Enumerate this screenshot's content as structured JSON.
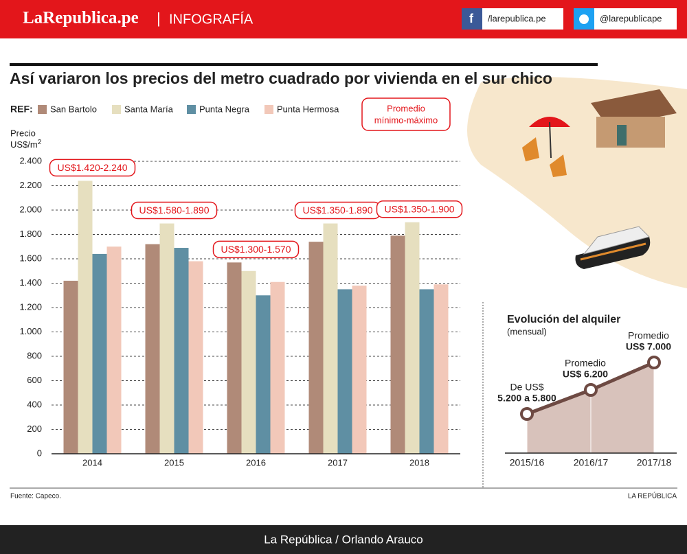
{
  "header": {
    "brand": "LaRepublica.pe",
    "section": "INFOGRAFÍA",
    "facebook": "/larepublica.pe",
    "twitter": "@larepublicape"
  },
  "chart_data": [
    {
      "type": "bar",
      "title": "Así variaron los precios del metro cuadrado por vivienda en el sur chico",
      "legend_title": "REF:",
      "y_label": "Precio",
      "y_unit": "US$/m",
      "y_unit_sup": "2",
      "note": [
        "Promedio",
        "mínimo-máximo"
      ],
      "categories": [
        "2014",
        "2015",
        "2016",
        "2017",
        "2018"
      ],
      "series": [
        {
          "name": "San Bartolo",
          "color": "#b08a78",
          "values": [
            1420,
            1720,
            1570,
            1740,
            1790
          ]
        },
        {
          "name": "Santa María",
          "color": "#e6dfbf",
          "values": [
            2240,
            1890,
            1500,
            1890,
            1900
          ]
        },
        {
          "name": "Punta Negra",
          "color": "#5f8fa3",
          "values": [
            1640,
            1690,
            1300,
            1350,
            1350
          ]
        },
        {
          "name": "Punta Hermosa",
          "color": "#f2c8b9",
          "values": [
            1700,
            1580,
            1410,
            1380,
            1390
          ]
        }
      ],
      "annotations": [
        "US$1.420-2.240",
        "US$1.580-1.890",
        "US$1.300-1.570",
        "US$1.350-1.890",
        "US$1.350-1.900"
      ],
      "ylim": [
        0,
        2400
      ],
      "yticks": [
        0,
        200,
        400,
        600,
        800,
        {
          "value": 1000,
          "label": "1.000"
        },
        {
          "value": 1200,
          "label": "1.200"
        },
        {
          "value": 1400,
          "label": "1.400"
        },
        {
          "value": 1600,
          "label": "1.600"
        },
        {
          "value": 1800,
          "label": "1.800"
        },
        {
          "value": 2000,
          "label": "2.000"
        },
        {
          "value": 2200,
          "label": "2.200"
        },
        {
          "value": 2400,
          "label": "2.400"
        }
      ],
      "grid": true
    },
    {
      "type": "area",
      "title": "Evolución del alquiler",
      "subtitle": "(mensual)",
      "categories": [
        "2015/16",
        "2016/17",
        "2017/18"
      ],
      "values": [
        5500,
        6200,
        7000
      ],
      "color": "#d8c2bb",
      "line_color": "#6e4a43",
      "annotations": [
        [
          "De US$",
          "5.200 a 5.800"
        ],
        [
          "Promedio",
          "US$ 6.200"
        ],
        [
          "Promedio",
          "US$ 7.000"
        ]
      ]
    }
  ],
  "footer": {
    "source": "Fuente: Capeco.",
    "credit": "LA REPÚBLICA",
    "author": "La República / Orlando Arauco"
  }
}
